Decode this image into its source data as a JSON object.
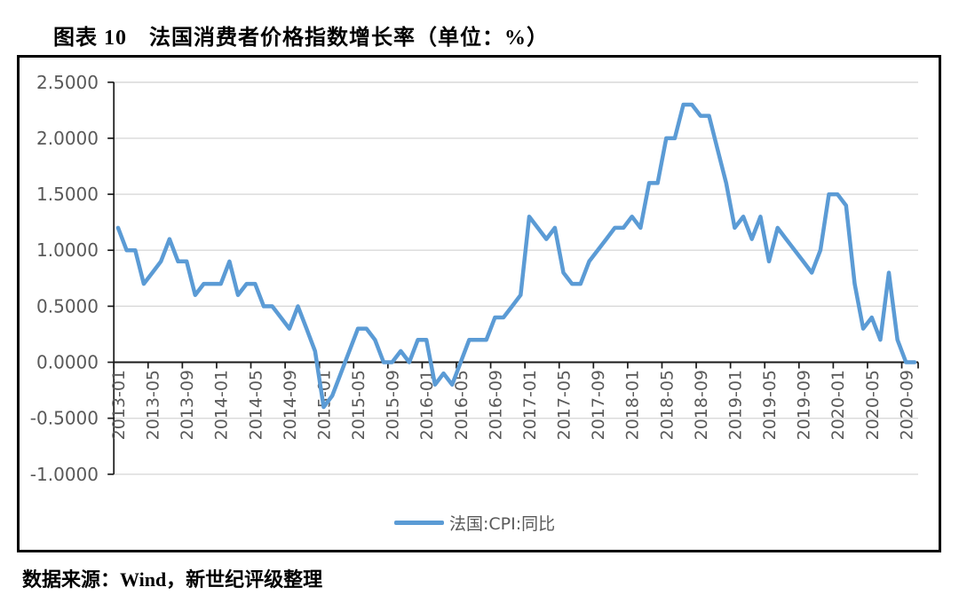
{
  "title": "图表 10　法国消费者价格指数增长率（单位：%）",
  "source": "数据来源：Wind，新世纪评级整理",
  "legend": {
    "label": "法国:CPI:同比",
    "color": "#5B9BD5"
  },
  "colors": {
    "line": "#5B9BD5",
    "grid": "#D9D9D9",
    "axis": "#1a1a1a",
    "tick_text": "#595959",
    "frame": "#000000",
    "background": "#ffffff"
  },
  "chart_data": {
    "type": "line",
    "title": "图表 10　法国消费者价格指数增长率（单位：%）",
    "unit": "%",
    "grid": true,
    "legend_position": "bottom",
    "ylim": [
      -1.0,
      2.5
    ],
    "y_step": 0.5,
    "x_start_month": "2013-01",
    "x_end_month": "2020-10",
    "x_label_every_n_months": 4,
    "x_tick_labels": [
      "2013-01",
      "2013-05",
      "2013-09",
      "2014-01",
      "2014-05",
      "2014-09",
      "2015-01",
      "2015-05",
      "2015-09",
      "2016-01",
      "2016-05",
      "2016-09",
      "2017-01",
      "2017-05",
      "2017-09",
      "2018-01",
      "2018-05",
      "2018-09",
      "2019-01",
      "2019-05",
      "2019-09",
      "2020-01",
      "2020-05",
      "2020-09"
    ],
    "y_ticks": [
      {
        "label": "2.5000",
        "value": 2.5
      },
      {
        "label": "2.0000",
        "value": 2.0
      },
      {
        "label": "1.5000",
        "value": 1.5
      },
      {
        "label": "1.0000",
        "value": 1.0
      },
      {
        "label": "0.5000",
        "value": 0.5
      },
      {
        "label": "0.0000",
        "value": 0.0
      },
      {
        "label": "-0.5000",
        "value": -0.5
      },
      {
        "label": "-1.0000",
        "value": -1.0
      }
    ],
    "series": [
      {
        "name": "法国:CPI:同比",
        "color": "#5B9BD5",
        "frequency": "monthly",
        "start": "2013-01",
        "values": [
          1.2,
          1.0,
          1.0,
          0.7,
          0.8,
          0.9,
          1.1,
          0.9,
          0.9,
          0.6,
          0.7,
          0.7,
          0.7,
          0.9,
          0.6,
          0.7,
          0.7,
          0.5,
          0.5,
          0.4,
          0.3,
          0.5,
          0.3,
          0.1,
          -0.4,
          -0.3,
          -0.1,
          0.1,
          0.3,
          0.3,
          0.2,
          0.0,
          0.0,
          0.1,
          0.0,
          0.2,
          0.2,
          -0.2,
          -0.1,
          -0.2,
          0.0,
          0.2,
          0.2,
          0.2,
          0.4,
          0.4,
          0.5,
          0.6,
          1.3,
          1.2,
          1.1,
          1.2,
          0.8,
          0.7,
          0.7,
          0.9,
          1.0,
          1.1,
          1.2,
          1.2,
          1.3,
          1.2,
          1.6,
          1.6,
          2.0,
          2.0,
          2.3,
          2.3,
          2.2,
          2.2,
          1.9,
          1.6,
          1.2,
          1.3,
          1.1,
          1.3,
          0.9,
          1.2,
          1.1,
          1.0,
          0.9,
          0.8,
          1.0,
          1.5,
          1.5,
          1.4,
          0.7,
          0.3,
          0.4,
          0.2,
          0.8,
          0.2,
          0.0,
          0.0
        ]
      }
    ]
  }
}
